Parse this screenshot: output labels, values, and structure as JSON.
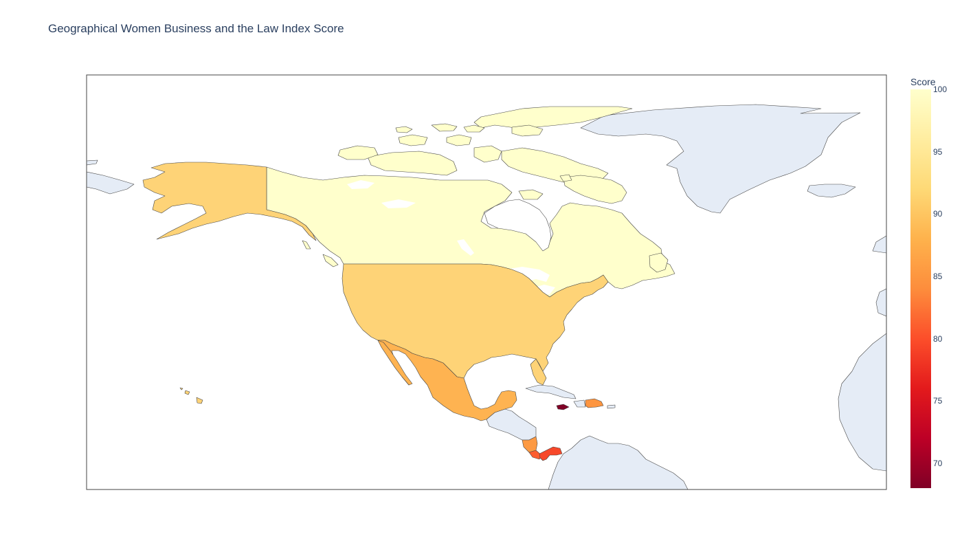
{
  "title": "Geographical Women Business and the Law Index Score",
  "colorbar": {
    "title": "Score",
    "min": 68,
    "max": 100,
    "ticks": [
      "70",
      "75",
      "80",
      "85",
      "90",
      "95",
      "100"
    ],
    "colorscale": [
      "#800026",
      "#bd0026",
      "#e31a1c",
      "#fc4e2a",
      "#fd8d3c",
      "#feb24c",
      "#fed976",
      "#ffeda0",
      "#ffffcc"
    ]
  },
  "colors": {
    "land_no_data": "#e5ecf6",
    "border": "#444444",
    "ocean": "#ffffff",
    "title": "#2a3f5f"
  },
  "map_data": {
    "type": "choropleth",
    "scope": "north america",
    "countries": [
      {
        "name": "Canada",
        "score": 100
      },
      {
        "name": "United States",
        "score": 91.25
      },
      {
        "name": "Mexico",
        "score": 88.8
      },
      {
        "name": "Dominican Republic",
        "score": 87.5
      },
      {
        "name": "Nicaragua",
        "score": 86.9
      },
      {
        "name": "Costa Rica",
        "score": 81.9
      },
      {
        "name": "Panama",
        "score": 80
      },
      {
        "name": "Jamaica",
        "score": 68.8
      }
    ]
  }
}
